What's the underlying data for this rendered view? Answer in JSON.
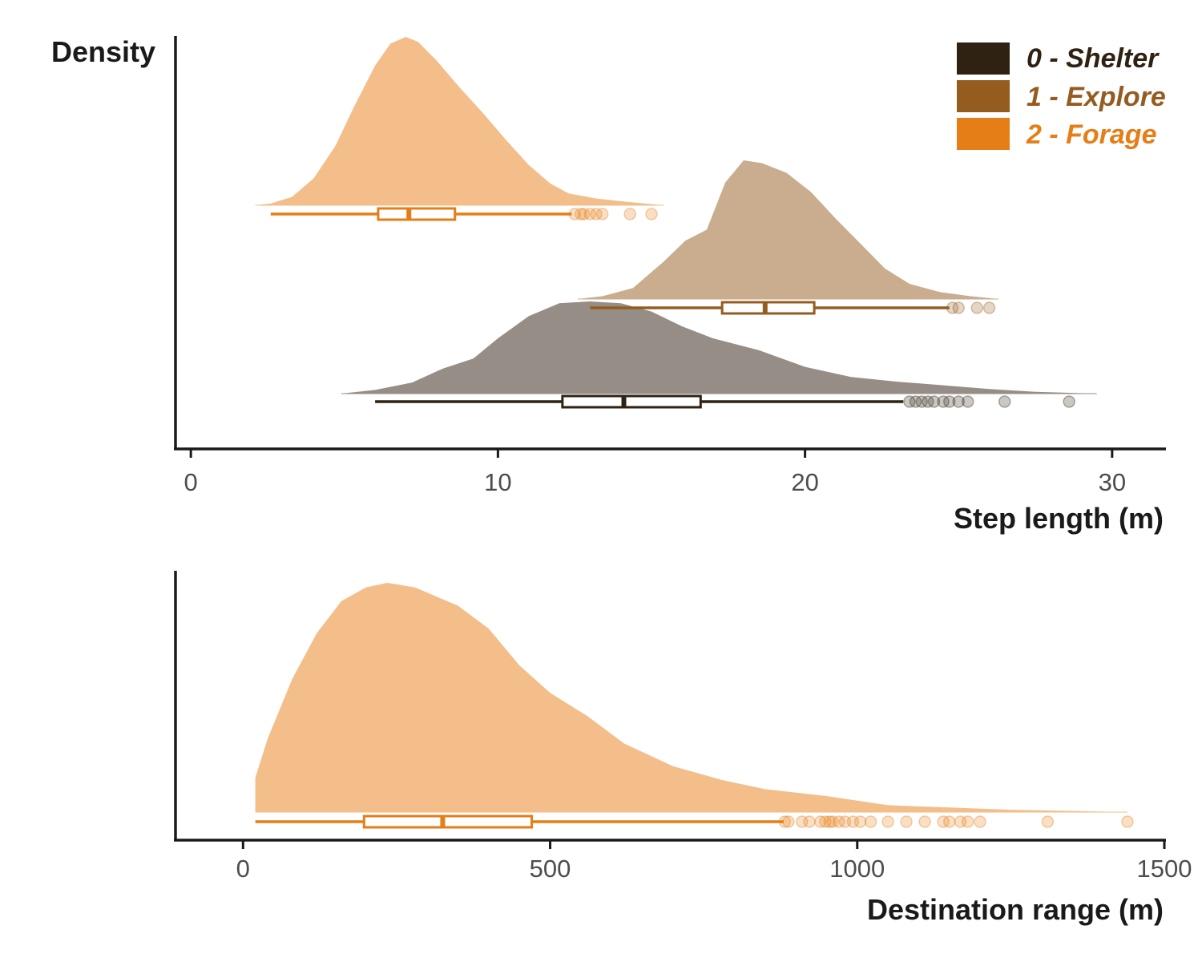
{
  "chart_data": [
    {
      "type": "raincloud",
      "ylabel": "Density",
      "xlabel": "Step length (m)",
      "xlim": [
        -0.5,
        31.7
      ],
      "x_ticks": [
        0,
        10,
        20,
        30
      ],
      "legend": {
        "placement": "top-right",
        "entries": [
          {
            "label": "0 - Shelter",
            "color": "#2f2213"
          },
          {
            "label": "1 - Explore",
            "color": "#955c20"
          },
          {
            "label": "2 - Forage",
            "color": "#e67e17"
          }
        ]
      },
      "series": [
        {
          "color": "#e67e17",
          "fill": "#f3be8a",
          "density": {
            "x": [
              2.1,
              2.6,
              3.3,
              4.0,
              4.7,
              5.3,
              6.0,
              6.5,
              7.0,
              7.4,
              8.0,
              8.7,
              9.5,
              10.3,
              11.0,
              11.7,
              12.3,
              13.2,
              14.2,
              15.4
            ],
            "y": [
              0.0,
              0.01,
              0.05,
              0.16,
              0.35,
              0.58,
              0.83,
              0.96,
              1.0,
              0.97,
              0.86,
              0.71,
              0.55,
              0.38,
              0.24,
              0.13,
              0.07,
              0.04,
              0.02,
              0.0
            ]
          },
          "box": {
            "whisker_low": 2.6,
            "q1": 6.1,
            "median": 7.1,
            "q3": 8.6,
            "whisker_high": 12.4
          },
          "outliers": [
            12.5,
            12.7,
            12.8,
            13.0,
            13.2,
            13.4,
            14.3,
            15.0
          ]
        },
        {
          "color": "#955c20",
          "fill": "#c9ad8e",
          "density": {
            "x": [
              12.6,
              13.4,
              14.4,
              15.4,
              16.1,
              16.8,
              17.4,
              18.0,
              18.6,
              19.4,
              20.2,
              21.0,
              21.8,
              22.6,
              23.4,
              24.4,
              25.4,
              26.3
            ],
            "y": [
              0.0,
              0.02,
              0.08,
              0.27,
              0.42,
              0.5,
              0.84,
              1.0,
              0.98,
              0.91,
              0.77,
              0.58,
              0.4,
              0.22,
              0.11,
              0.05,
              0.02,
              0.0
            ]
          },
          "box": {
            "whisker_low": 13.0,
            "q1": 17.3,
            "median": 18.7,
            "q3": 20.3,
            "whisker_high": 24.7
          },
          "outliers": [
            24.8,
            25.0,
            25.6,
            26.0
          ]
        },
        {
          "color": "#2f2213",
          "fill": "#968d86",
          "density": {
            "x": [
              4.9,
              6.0,
              7.2,
              8.2,
              9.2,
              10.0,
              11.0,
              12.0,
              13.0,
              14.0,
              15.0,
              16.0,
              17.0,
              18.5,
              20.0,
              21.5,
              23.0,
              24.5,
              26.0,
              27.5,
              29.5
            ],
            "y": [
              0.0,
              0.04,
              0.12,
              0.27,
              0.38,
              0.6,
              0.84,
              0.98,
              1.0,
              0.98,
              0.89,
              0.73,
              0.6,
              0.47,
              0.29,
              0.18,
              0.13,
              0.09,
              0.05,
              0.02,
              0.0
            ]
          },
          "box": {
            "whisker_low": 6.0,
            "q1": 12.1,
            "median": 14.1,
            "q3": 16.6,
            "whisker_high": 23.2
          },
          "outliers": [
            23.4,
            23.6,
            23.8,
            24.0,
            24.2,
            24.5,
            24.7,
            25.0,
            25.3,
            26.5,
            28.6
          ]
        }
      ]
    },
    {
      "type": "raincloud",
      "xlabel": "Destination range (m)",
      "xlim": [
        -110,
        1500
      ],
      "x_ticks": [
        0,
        500,
        1000,
        1500
      ],
      "series": [
        {
          "color": "#e67e17",
          "fill": "#f3be8a",
          "density": {
            "x": [
              20,
              20,
              40,
              80,
              120,
              160,
              200,
              235,
              280,
              350,
              400,
              450,
              500,
              560,
              620,
              700,
              780,
              850,
              950,
              1050,
              1150,
              1250,
              1350,
              1440
            ],
            "y": [
              0.0,
              0.15,
              0.32,
              0.58,
              0.78,
              0.92,
              0.98,
              1.0,
              0.98,
              0.9,
              0.8,
              0.64,
              0.52,
              0.42,
              0.3,
              0.2,
              0.14,
              0.1,
              0.07,
              0.03,
              0.02,
              0.01,
              0.005,
              0.0
            ]
          },
          "box": {
            "whisker_low": 20,
            "q1": 197,
            "median": 325,
            "q3": 470,
            "whisker_high": 880
          },
          "outliers": [
            882,
            888,
            910,
            922,
            940,
            948,
            955,
            960,
            970,
            980,
            993,
            1005,
            1022,
            1050,
            1080,
            1110,
            1140,
            1150,
            1168,
            1180,
            1200,
            1310,
            1440
          ]
        }
      ]
    }
  ]
}
